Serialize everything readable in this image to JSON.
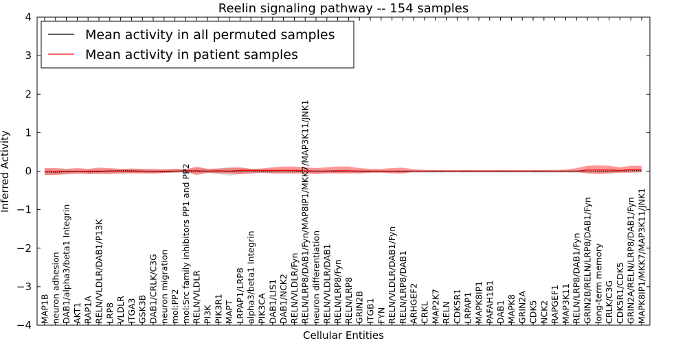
{
  "chart_data": {
    "type": "line",
    "title": "Reelin signaling pathway -- 154 samples",
    "xlabel": "Cellular Entities",
    "ylabel": "Inferred Activity",
    "ylim": [
      -4,
      4
    ],
    "yticks": [
      "−4",
      "−3",
      "−2",
      "−1",
      "0",
      "1",
      "2",
      "3",
      "4"
    ],
    "legend": {
      "placement": "top-left",
      "entries": [
        {
          "label": "Mean activity in all permuted samples",
          "color": "#000000"
        },
        {
          "label": "Mean activity in patient samples",
          "color": "#ff0000"
        }
      ]
    },
    "categories": [
      "MAP1B",
      "neuron adhesion",
      "DAB1/alpha3/beta1 Integrin",
      "AKT1",
      "RAP1A",
      "RELN/VLDLR/DAB1/P13K",
      "LRP8",
      "VLDLR",
      "ITGA3",
      "GSK3B",
      "DAB1/CRLK/C3G",
      "neuron migration",
      "mol:PP2",
      "mol:Src family inhibitors PP1 and PP2",
      "RELN/VLDLR",
      "PI3K",
      "PIK3R1",
      "MAPT",
      "LRPAP1/LRP8",
      "alpha3/beta1 Integrin",
      "PIK3CA",
      "DAB1/LIS1",
      "DAB1/NCK2",
      "RELN/VLDLR/Fyn",
      "RELN/LRP8/DAB1/Fyn/MAP8IP1/MKK7/MAP3K11/JNK1",
      "neuron differentiation",
      "RELN/VLDLR/DAB1",
      "RELN/LRP8/Fyn",
      "RELN/LRP8",
      "GRIN2B",
      "ITGB1",
      "FYN",
      "RELN/VLDLR/DAB1/Fyn",
      "RELN/LRP8/DAB1",
      "ARHGEF2",
      "CRKL",
      "MAP2K7",
      "RELN",
      "CDK5R1",
      "LRPAP1",
      "MAPK8IP1",
      "PAFAH1B1",
      "DAB1",
      "MAPK8",
      "GRIN2A",
      "CDK5",
      "NCK2",
      "RAPGEF1",
      "MAP3K11",
      "RELN/LRP8/DAB1/Fyn",
      "GRIN2B/RELN/LRP8/DAB1/Fyn",
      "long-term memory",
      "CRLK/C3G",
      "CDK5R1/CDK5",
      "GRIN2A/RELN/LRP8/DAB1/Fyn",
      "MAPK8IP1/MKK7/MAP3K11/JNK1"
    ],
    "series": [
      {
        "name": "Mean activity in all permuted samples",
        "color": "#000000",
        "values": [
          -0.02,
          -0.03,
          -0.01,
          -0.01,
          -0.02,
          -0.01,
          0.01,
          0.01,
          0.01,
          0.0,
          -0.01,
          -0.01,
          0.0,
          0.0,
          0.0,
          0.0,
          0.0,
          0.0,
          0.0,
          0.0,
          0.0,
          0.0,
          0.0,
          0.0,
          0.0,
          0.0,
          0.0,
          0.0,
          0.0,
          0.0,
          0.0,
          0.0,
          0.0,
          0.0,
          0.0,
          0.0,
          0.0,
          0.0,
          0.0,
          0.0,
          0.0,
          0.0,
          0.0,
          0.0,
          0.0,
          0.0,
          0.0,
          0.0,
          0.0,
          0.0,
          0.0,
          0.0,
          0.0,
          0.0,
          0.01,
          0.01
        ],
        "band_upper": [
          0.05,
          0.04,
          0.04,
          0.04,
          0.04,
          0.05,
          0.05,
          0.05,
          0.05,
          0.04,
          0.04,
          0.03,
          0.05,
          0.06,
          0.08,
          0.06,
          0.07,
          0.12,
          0.08,
          0.06,
          0.05,
          0.05,
          0.05,
          0.05,
          0.04,
          0.04,
          0.04,
          0.03,
          0.03,
          0.03,
          0.02,
          0.02,
          0.02,
          0.02,
          0.02,
          0.02,
          0.02,
          0.02,
          0.02,
          0.02,
          0.02,
          0.02,
          0.02,
          0.02,
          0.02,
          0.02,
          0.02,
          0.02,
          0.02,
          0.02,
          0.02,
          0.02,
          0.02,
          0.02,
          0.03,
          0.03
        ],
        "band_lower": [
          -0.09,
          -0.09,
          -0.07,
          -0.07,
          -0.08,
          -0.07,
          -0.04,
          -0.04,
          -0.04,
          -0.05,
          -0.06,
          -0.05,
          -0.05,
          -0.05,
          -0.06,
          -0.06,
          -0.07,
          -0.12,
          -0.08,
          -0.06,
          -0.05,
          -0.05,
          -0.05,
          -0.05,
          -0.04,
          -0.04,
          -0.04,
          -0.04,
          -0.04,
          -0.04,
          -0.04,
          -0.04,
          -0.04,
          -0.04,
          -0.04,
          -0.05,
          -0.05,
          -0.04,
          -0.04,
          -0.04,
          -0.04,
          -0.04,
          -0.04,
          -0.04,
          -0.04,
          -0.04,
          -0.05,
          -0.04,
          -0.04,
          -0.04,
          -0.04,
          -0.04,
          -0.04,
          -0.03,
          -0.02,
          -0.02
        ]
      },
      {
        "name": "Mean activity in patient samples",
        "color": "#ff0000",
        "values": [
          -0.02,
          -0.01,
          -0.01,
          -0.01,
          0.0,
          0.0,
          0.0,
          0.0,
          0.0,
          0.0,
          -0.01,
          0.0,
          0.0,
          0.01,
          0.01,
          0.0,
          0.01,
          0.0,
          0.02,
          0.02,
          0.02,
          0.02,
          0.02,
          0.02,
          0.01,
          0.0,
          0.0,
          0.01,
          0.01,
          0.0,
          0.0,
          0.0,
          0.0,
          0.0,
          0.0,
          0.0,
          0.0,
          0.0,
          0.0,
          0.0,
          0.0,
          0.0,
          0.0,
          0.0,
          0.0,
          0.0,
          0.0,
          0.0,
          0.0,
          0.0,
          0.03,
          0.03,
          0.03,
          0.02,
          0.04,
          0.05
        ],
        "band_upper": [
          0.08,
          0.08,
          0.06,
          0.08,
          0.06,
          0.09,
          0.08,
          0.06,
          0.07,
          0.06,
          0.06,
          0.05,
          0.06,
          0.04,
          0.12,
          0.06,
          0.07,
          0.08,
          0.1,
          0.06,
          0.07,
          0.1,
          0.12,
          0.12,
          0.1,
          0.08,
          0.1,
          0.12,
          0.12,
          0.08,
          0.06,
          0.06,
          0.08,
          0.09,
          0.05,
          0.03,
          0.03,
          0.03,
          0.03,
          0.03,
          0.03,
          0.03,
          0.03,
          0.03,
          0.03,
          0.03,
          0.03,
          0.03,
          0.04,
          0.08,
          0.14,
          0.15,
          0.14,
          0.1,
          0.14,
          0.14
        ],
        "band_lower": [
          -0.1,
          -0.1,
          -0.08,
          -0.06,
          -0.07,
          -0.07,
          -0.08,
          -0.06,
          -0.06,
          -0.06,
          -0.06,
          -0.05,
          -0.03,
          -0.02,
          -0.1,
          -0.04,
          -0.06,
          -0.06,
          -0.08,
          -0.06,
          -0.04,
          -0.06,
          -0.06,
          -0.06,
          -0.06,
          -0.08,
          -0.06,
          -0.06,
          -0.06,
          -0.06,
          -0.04,
          -0.04,
          -0.06,
          -0.06,
          -0.02,
          -0.02,
          -0.02,
          -0.02,
          -0.02,
          -0.02,
          -0.02,
          -0.02,
          -0.02,
          -0.02,
          -0.02,
          -0.02,
          -0.02,
          -0.02,
          -0.02,
          -0.02,
          -0.06,
          -0.08,
          -0.06,
          -0.04,
          -0.04,
          -0.03
        ]
      }
    ]
  }
}
